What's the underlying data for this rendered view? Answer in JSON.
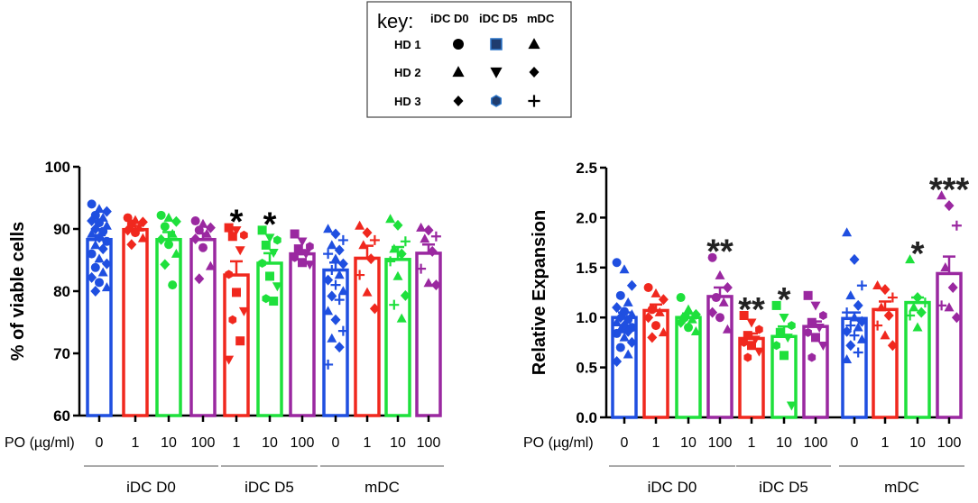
{
  "key": {
    "title": "key:",
    "columns": [
      "iDC D0",
      "iDC D5",
      "mDC"
    ],
    "rows": [
      {
        "label": "HD 1",
        "symbols": [
          "circle",
          "square",
          "triangle-up"
        ]
      },
      {
        "label": "HD 2",
        "symbols": [
          "triangle-up",
          "triangle-down",
          "diamond"
        ]
      },
      {
        "label": "HD 3",
        "symbols": [
          "diamond",
          "hexagon",
          "plus"
        ]
      }
    ]
  },
  "colors": {
    "0": "#1f4fe0",
    "1": "#f0281e",
    "10": "#1ee03c",
    "100": "#9a28a0",
    "iDC D5 square fill": "#1f3c6e"
  },
  "chart_data": [
    {
      "type": "bar",
      "title": "",
      "ylabel": "% of viable cells",
      "xlabel": "PO (µg/ml)",
      "ylim": [
        60,
        100
      ],
      "yticks": [
        60,
        70,
        80,
        90,
        100
      ],
      "groups": [
        {
          "label": "iDC D0",
          "doses": [
            "0",
            "1",
            "10",
            "100"
          ]
        },
        {
          "label": "iDC D5",
          "doses": [
            "1",
            "10",
            "100"
          ]
        },
        {
          "label": "mDC",
          "doses": [
            "0",
            "1",
            "10",
            "100"
          ]
        }
      ],
      "bars": [
        {
          "group": "iDC D0",
          "dose": "0",
          "color": "0",
          "mean": 88.3,
          "sem": 0.7,
          "sig": "",
          "points": [
            94,
            93.2,
            92.8,
            92.2,
            91.8,
            91.3,
            91,
            90.5,
            90,
            89.6,
            89.2,
            88.6,
            88,
            87.4,
            86.8,
            86,
            85.2,
            84.4,
            83.8,
            83,
            82.2,
            81.4,
            80.6,
            80
          ],
          "shapes": [
            "circle",
            "triangle-up",
            "diamond"
          ]
        },
        {
          "group": "iDC D0",
          "dose": "1",
          "color": "1",
          "mean": 89.9,
          "sem": 0.6,
          "sig": "",
          "points": [
            91.8,
            91.4,
            91.1,
            90.8,
            90.2,
            89.8,
            89.4,
            88.5,
            87.5
          ],
          "shapes": [
            "circle",
            "triangle-up",
            "diamond"
          ]
        },
        {
          "group": "iDC D0",
          "dose": "10",
          "color": "10",
          "mean": 88.3,
          "sem": 1.2,
          "sig": "",
          "points": [
            92.2,
            91.8,
            91.2,
            90.4,
            89.2,
            88.3,
            87.5,
            86,
            84.3,
            81
          ],
          "shapes": [
            "circle",
            "triangle-up",
            "diamond"
          ]
        },
        {
          "group": "iDC D0",
          "dose": "100",
          "color": "100",
          "mean": 88.3,
          "sem": 1.0,
          "sig": "",
          "points": [
            91.3,
            90.8,
            90.2,
            89.8,
            89.2,
            88.4,
            87,
            84,
            82
          ],
          "shapes": [
            "circle",
            "triangle-up",
            "diamond"
          ]
        },
        {
          "group": "iDC D5",
          "dose": "1",
          "color": "1",
          "mean": 82.6,
          "sem": 2.2,
          "sig": "*",
          "points": [
            90.2,
            89.8,
            89,
            88.8,
            86.6,
            82.7,
            79.8,
            76.8,
            75.4,
            72,
            69
          ],
          "shapes": [
            "square",
            "triangle-down",
            "hexagon"
          ]
        },
        {
          "group": "iDC D5",
          "dose": "10",
          "color": "10",
          "mean": 84.5,
          "sem": 1.6,
          "sig": "*",
          "points": [
            89.8,
            88.6,
            88.2,
            87.4,
            86.2,
            84.5,
            82.4,
            80.8,
            78.8,
            78.4
          ],
          "shapes": [
            "square",
            "triangle-down",
            "hexagon"
          ]
        },
        {
          "group": "iDC D5",
          "dose": "100",
          "color": "100",
          "mean": 86.0,
          "sem": 0.6,
          "sig": "",
          "points": [
            89.2,
            88,
            87.2,
            86.8,
            86,
            85.4,
            84.6,
            84.3
          ],
          "shapes": [
            "square",
            "triangle-down",
            "hexagon"
          ]
        },
        {
          "group": "mDC",
          "dose": "0",
          "color": "0",
          "mean": 83.4,
          "sem": 1.2,
          "sig": "",
          "points": [
            90,
            89.2,
            88.2,
            87.4,
            86.6,
            86,
            85.2,
            84.4,
            83.4,
            82.6,
            81.8,
            81,
            80,
            79.2,
            78.6,
            76.8,
            75.4,
            73.6,
            72.4,
            71,
            68.2
          ],
          "shapes": [
            "triangle-up",
            "diamond",
            "plus"
          ]
        },
        {
          "group": "mDC",
          "dose": "1",
          "color": "1",
          "mean": 85.3,
          "sem": 2.0,
          "sig": "",
          "points": [
            90.5,
            89.4,
            88.2,
            87.4,
            85.2,
            82.6,
            79.8,
            77.2
          ],
          "shapes": [
            "triangle-up",
            "diamond",
            "plus"
          ]
        },
        {
          "group": "mDC",
          "dose": "10",
          "color": "10",
          "mean": 85.1,
          "sem": 2.0,
          "sig": "",
          "points": [
            91.6,
            90.6,
            88,
            86.8,
            86,
            84.8,
            82.4,
            79.3,
            77.8,
            75.6
          ],
          "shapes": [
            "triangle-up",
            "diamond",
            "plus"
          ]
        },
        {
          "group": "mDC",
          "dose": "100",
          "color": "100",
          "mean": 86.1,
          "sem": 1.4,
          "sig": "",
          "points": [
            90.2,
            89.8,
            88.8,
            88.4,
            86.4,
            83.6,
            81.3,
            81
          ],
          "shapes": [
            "triangle-up",
            "diamond",
            "plus"
          ]
        }
      ]
    },
    {
      "type": "bar",
      "title": "",
      "ylabel": "Relative Expansion",
      "xlabel": "PO (µg/ml)",
      "ylim": [
        0,
        2.5
      ],
      "yticks": [
        0.0,
        0.5,
        1.0,
        1.5,
        2.0,
        2.5
      ],
      "groups": [
        {
          "label": "iDC D0",
          "doses": [
            "0",
            "1",
            "10",
            "100"
          ]
        },
        {
          "label": "iDC D5",
          "doses": [
            "1",
            "10",
            "100"
          ]
        },
        {
          "label": "mDC",
          "doses": [
            "0",
            "1",
            "10",
            "100"
          ]
        }
      ],
      "bars": [
        {
          "group": "iDC D0",
          "dose": "0",
          "color": "0",
          "mean": 1.0,
          "sem": 0.05,
          "sig": "",
          "points": [
            1.55,
            1.48,
            1.32,
            1.22,
            1.15,
            1.1,
            1.06,
            1.03,
            1.0,
            0.98,
            0.95,
            0.92,
            0.9,
            0.88,
            0.86,
            0.84,
            0.8,
            0.75,
            0.7,
            0.63,
            0.56
          ],
          "shapes": [
            "circle",
            "triangle-up",
            "diamond"
          ]
        },
        {
          "group": "iDC D0",
          "dose": "1",
          "color": "1",
          "mean": 1.07,
          "sem": 0.06,
          "sig": "",
          "points": [
            1.3,
            1.24,
            1.18,
            1.08,
            1.05,
            1.0,
            0.92,
            0.85,
            0.8
          ],
          "shapes": [
            "circle",
            "triangle-up",
            "diamond"
          ]
        },
        {
          "group": "iDC D0",
          "dose": "10",
          "color": "10",
          "mean": 1.0,
          "sem": 0.04,
          "sig": "",
          "points": [
            1.2,
            1.08,
            1.03,
            1.0,
            0.98,
            0.95,
            0.9,
            0.86
          ],
          "shapes": [
            "circle",
            "triangle-up",
            "diamond"
          ]
        },
        {
          "group": "iDC D0",
          "dose": "100",
          "color": "100",
          "mean": 1.21,
          "sem": 0.09,
          "sig": "**",
          "points": [
            1.6,
            1.42,
            1.3,
            1.2,
            1.15,
            1.05,
            1.0,
            0.88
          ],
          "shapes": [
            "circle",
            "triangle-up",
            "diamond"
          ]
        },
        {
          "group": "iDC D5",
          "dose": "1",
          "color": "1",
          "mean": 0.79,
          "sem": 0.05,
          "sig": "**",
          "points": [
            1.02,
            0.95,
            0.88,
            0.82,
            0.78,
            0.75,
            0.72,
            0.66,
            0.6
          ],
          "shapes": [
            "square",
            "triangle-down",
            "hexagon"
          ]
        },
        {
          "group": "iDC D5",
          "dose": "10",
          "color": "10",
          "mean": 0.81,
          "sem": 0.1,
          "sig": "*",
          "points": [
            1.12,
            1.0,
            0.92,
            0.85,
            0.8,
            0.72,
            0.62,
            0.12
          ],
          "shapes": [
            "square",
            "triangle-down",
            "hexagon"
          ]
        },
        {
          "group": "iDC D5",
          "dose": "100",
          "color": "100",
          "mean": 0.91,
          "sem": 0.05,
          "sig": "",
          "points": [
            1.22,
            1.12,
            1.02,
            0.95,
            0.9,
            0.85,
            0.8,
            0.72,
            0.6
          ],
          "shapes": [
            "square",
            "triangle-down",
            "hexagon"
          ]
        },
        {
          "group": "mDC",
          "dose": "0",
          "color": "0",
          "mean": 0.99,
          "sem": 0.06,
          "sig": "",
          "points": [
            1.85,
            1.58,
            1.32,
            1.22,
            1.12,
            1.05,
            1.0,
            0.96,
            0.92,
            0.9,
            0.86,
            0.82,
            0.78,
            0.72,
            0.65,
            0.58
          ],
          "shapes": [
            "triangle-up",
            "diamond",
            "plus"
          ]
        },
        {
          "group": "mDC",
          "dose": "1",
          "color": "1",
          "mean": 1.08,
          "sem": 0.08,
          "sig": "",
          "points": [
            1.32,
            1.28,
            1.2,
            1.1,
            1.02,
            0.92,
            0.82,
            0.72
          ],
          "shapes": [
            "triangle-up",
            "diamond",
            "plus"
          ]
        },
        {
          "group": "mDC",
          "dose": "10",
          "color": "10",
          "mean": 1.15,
          "sem": 0.05,
          "sig": "*",
          "points": [
            1.58,
            1.2,
            1.15,
            1.1,
            1.05,
            1.02,
            0.9
          ],
          "shapes": [
            "triangle-up",
            "diamond",
            "plus"
          ]
        },
        {
          "group": "mDC",
          "dose": "100",
          "color": "100",
          "mean": 1.44,
          "sem": 0.17,
          "sig": "***",
          "points": [
            2.22,
            2.12,
            1.92,
            1.5,
            1.3,
            1.12,
            1.1,
            1.0
          ],
          "shapes": [
            "triangle-up",
            "diamond",
            "plus"
          ]
        }
      ]
    }
  ]
}
